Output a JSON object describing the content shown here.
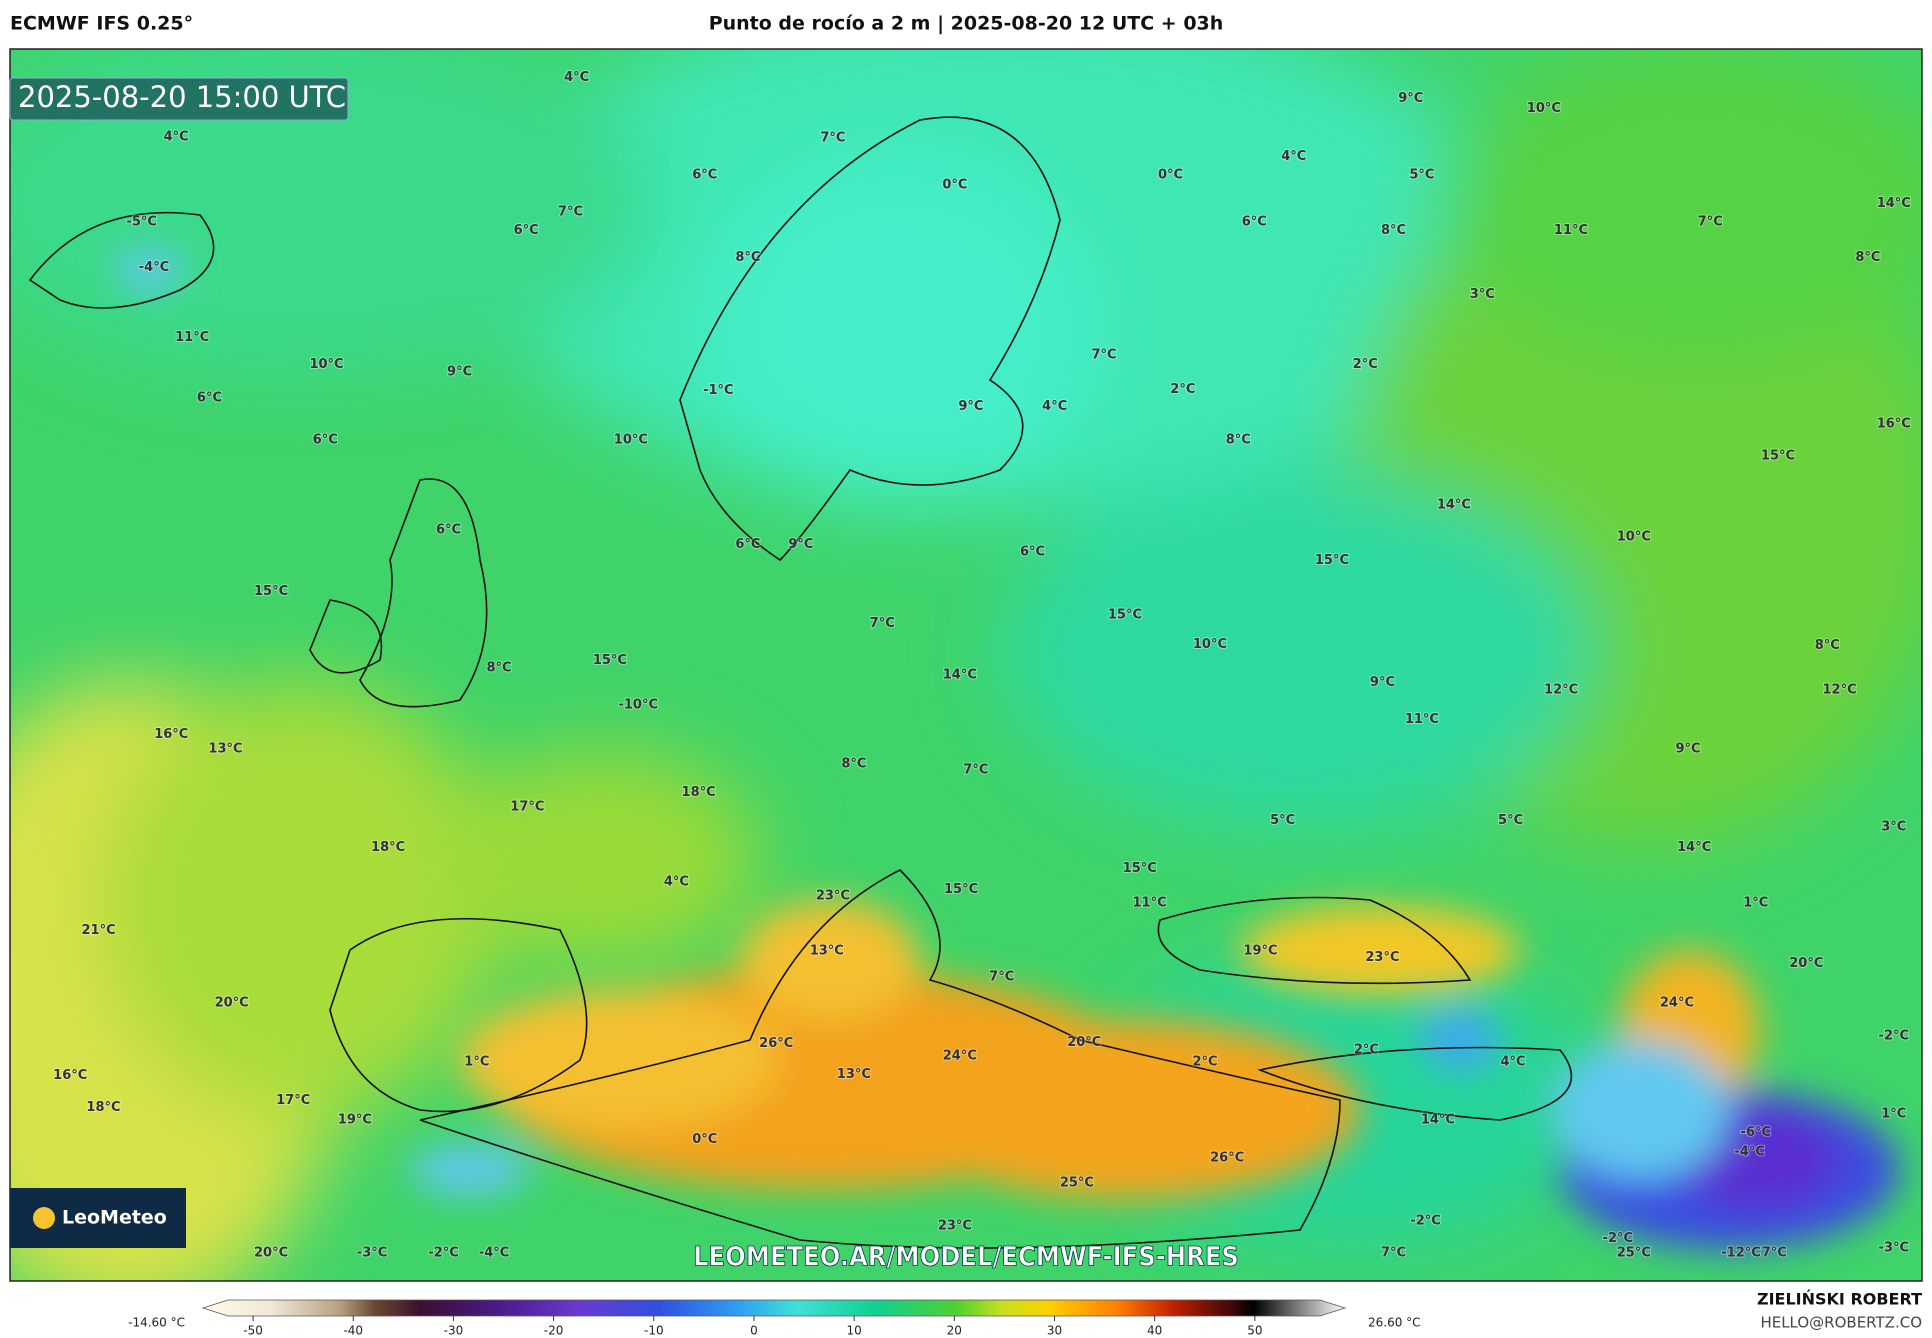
{
  "header": {
    "model": "ECMWF IFS 0.25°",
    "title": "Punto de rocío a 2 m | 2025-08-20 12 UTC + 03h"
  },
  "map": {
    "timestamp": "2025-08-20 15:00 UTC",
    "watermark": "LEOMETEO.AR/MODEL/ECMWF-IFS-HRES",
    "logo": "LeoMeteo",
    "labels": [
      "4°C",
      "4°C",
      "7°C",
      "6°C",
      "0°C",
      "0°C",
      "9°C",
      "10°C",
      "4°C",
      "5°C",
      "14°C",
      "-5°C",
      "7°C",
      "6°C",
      "6°C",
      "8°C",
      "11°C",
      "7°C",
      "8°C",
      "-4°C",
      "8°C",
      "3°C",
      "11°C",
      "10°C",
      "9°C",
      "2°C",
      "7°C",
      "-1°C",
      "6°C",
      "9°C",
      "4°C",
      "2°C",
      "16°C",
      "6°C",
      "10°C",
      "8°C",
      "15°C",
      "14°C",
      "6°C",
      "10°C",
      "6°C",
      "9°C",
      "6°C",
      "15°C",
      "15°C",
      "15°C",
      "7°C",
      "10°C",
      "8°C",
      "8°C",
      "15°C",
      "14°C",
      "9°C",
      "12°C",
      "12°C",
      "-10°C",
      "11°C",
      "16°C",
      "13°C",
      "9°C",
      "18°C",
      "8°C",
      "7°C",
      "17°C",
      "5°C",
      "5°C",
      "3°C",
      "18°C",
      "14°C",
      "4°C",
      "23°C",
      "15°C",
      "15°C",
      "11°C",
      "1°C",
      "21°C",
      "19°C",
      "23°C",
      "13°C",
      "20°C",
      "7°C",
      "20°C",
      "24°C",
      "-2°C",
      "26°C",
      "20°C",
      "24°C",
      "2°C",
      "2°C",
      "4°C",
      "1°C",
      "13°C",
      "16°C",
      "17°C",
      "18°C",
      "19°C",
      "14°C",
      "1°C",
      "-6°C",
      "-4°C",
      "0°C",
      "26°C",
      "25°C",
      "-2°C",
      "23°C",
      "20°C",
      "-3°C",
      "-2°C",
      "-4°C",
      "7°C",
      "-2°C",
      "25°C",
      "-12°C",
      "7°C",
      "-3°C"
    ]
  },
  "colorbar": {
    "min_label": "-14.60 °C",
    "max_label": "26.60 °C",
    "range": [
      -55,
      59
    ],
    "ticks": [
      -50,
      -40,
      -30,
      -20,
      -10,
      0,
      10,
      20,
      30,
      40,
      50
    ]
  },
  "credit": {
    "author": "ZIELIŃSKI ROBERT",
    "email": "HELLO@ROBERTZ.CO"
  }
}
